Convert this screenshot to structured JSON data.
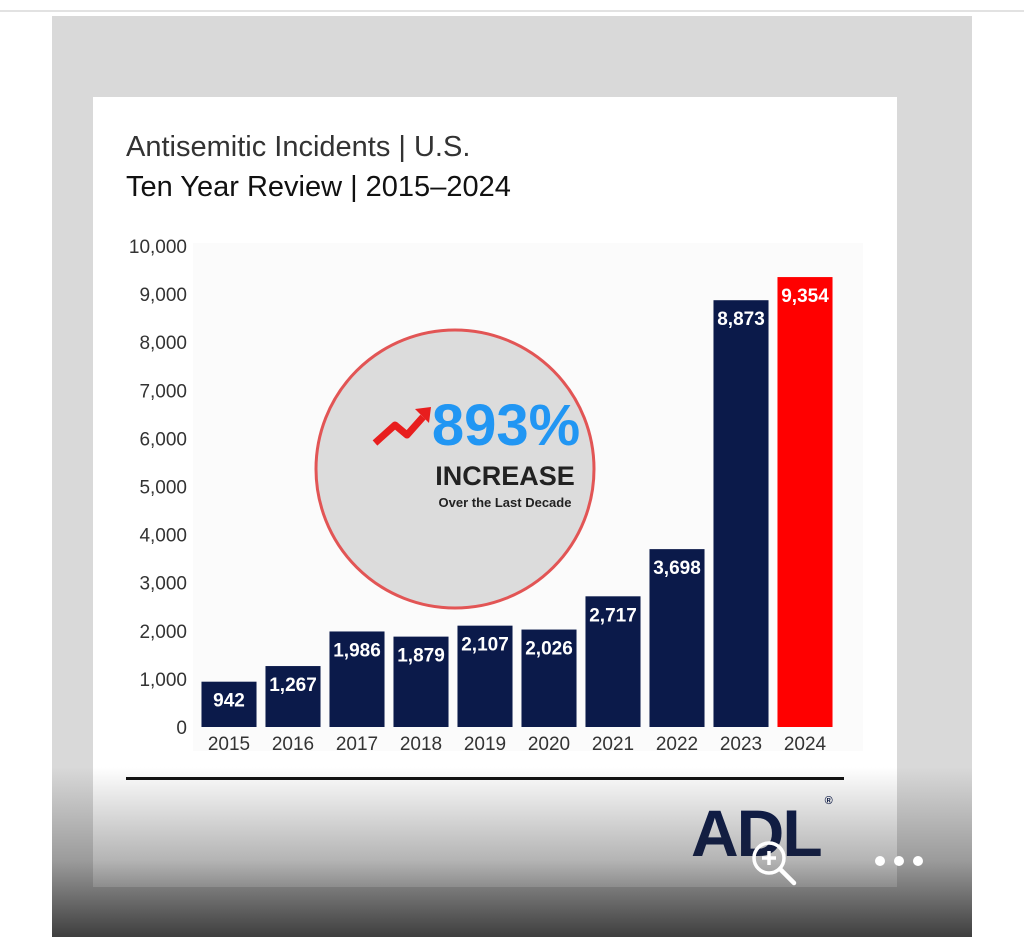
{
  "title_line1": "Antisemitic Incidents | U.S.",
  "title_line2": "Ten Year Review | 2015–2024",
  "badge": {
    "percent": "893%",
    "word": "INCREASE",
    "subtitle": "Over the Last Decade"
  },
  "logo_text": "ADL",
  "logo_mark": "®",
  "colors": {
    "bar": "#0b1a4a",
    "highlight_bar": "#ff0000",
    "badge_percent": "#2196f3",
    "badge_circle": "#dcdcdc",
    "badge_ring": "#e25555",
    "arrow": "#e81e1e"
  },
  "icons": [
    "arrow-up-trend-icon",
    "zoom-in-icon",
    "more-options-icon"
  ],
  "chart_data": {
    "type": "bar",
    "title": "Antisemitic Incidents | U.S.",
    "subtitle": "Ten Year Review | 2015–2024",
    "categories": [
      "2015",
      "2016",
      "2017",
      "2018",
      "2019",
      "2020",
      "2021",
      "2022",
      "2023",
      "2024"
    ],
    "values": [
      942,
      1267,
      1986,
      1879,
      2107,
      2026,
      2717,
      3698,
      8873,
      9354
    ],
    "data_labels": [
      "942",
      "1,267",
      "1,986",
      "1,879",
      "2,107",
      "2,026",
      "2,717",
      "3,698",
      "8,873",
      "9,354"
    ],
    "highlight_index": 9,
    "y_ticks": [
      "0",
      "1,000",
      "2,000",
      "3,000",
      "4,000",
      "5,000",
      "6,000",
      "7,000",
      "8,000",
      "9,000",
      "10,000"
    ],
    "ylim": [
      0,
      10000
    ],
    "xlabel": "",
    "ylabel": "",
    "grid": false,
    "legend": "none"
  }
}
